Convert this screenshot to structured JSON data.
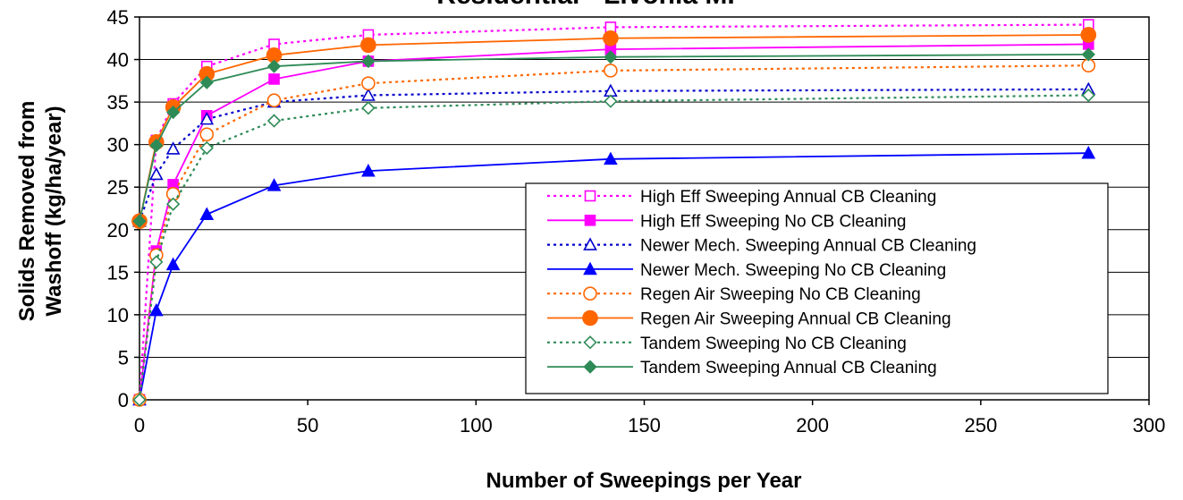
{
  "chart_data": {
    "type": "line",
    "title": "Residential - Livonia MI",
    "xlabel": "Number of Sweepings per Year",
    "ylabel_line1": "Solids Removed from",
    "ylabel_line2": "Washoff (kg/ha/year)",
    "xlim": [
      0,
      300
    ],
    "ylim": [
      0,
      45
    ],
    "x_ticks": [
      0,
      50,
      100,
      150,
      200,
      250,
      300
    ],
    "y_ticks": [
      0,
      5,
      10,
      15,
      20,
      25,
      30,
      35,
      40,
      45
    ],
    "grid": "horizontal",
    "legend_position": "lower-right",
    "x": [
      0,
      5,
      10,
      20,
      40,
      68,
      140,
      282
    ],
    "series": [
      {
        "name": "High Eff Sweeping Annual CB Cleaning",
        "color": "#ff00ff",
        "dashed": true,
        "marker": "square-open",
        "values": [
          0,
          30.5,
          34.8,
          39.2,
          41.8,
          42.9,
          43.8,
          44.1
        ]
      },
      {
        "name": "High Eff Sweeping No CB Cleaning",
        "color": "#ff00ff",
        "dashed": false,
        "marker": "square-filled",
        "values": [
          0,
          17.5,
          25.3,
          33.4,
          37.7,
          39.8,
          41.2,
          41.8
        ]
      },
      {
        "name": "Newer Mech. Sweeping Annual CB Cleaning",
        "color": "#0000cc",
        "dashed": true,
        "marker": "triangle-open",
        "values": [
          21.0,
          26.5,
          29.5,
          33.0,
          35.0,
          35.8,
          36.3,
          36.5
        ]
      },
      {
        "name": "Newer Mech. Sweeping No CB Cleaning",
        "color": "#0000ff",
        "dashed": false,
        "marker": "triangle-filled",
        "values": [
          0,
          10.5,
          15.9,
          21.8,
          25.2,
          26.9,
          28.3,
          29.0
        ]
      },
      {
        "name": "Regen Air Sweeping No CB Cleaning",
        "color": "#ff6600",
        "dashed": true,
        "marker": "circle-open",
        "values": [
          0,
          17.0,
          24.2,
          31.2,
          35.2,
          37.2,
          38.7,
          39.3
        ]
      },
      {
        "name": "Regen Air Sweeping Annual CB Cleaning",
        "color": "#ff6600",
        "dashed": false,
        "marker": "circle-filled",
        "values": [
          21.0,
          30.3,
          34.4,
          38.3,
          40.5,
          41.7,
          42.5,
          42.9
        ]
      },
      {
        "name": "Tandem Sweeping No CB Cleaning",
        "color": "#2e8b57",
        "dashed": true,
        "marker": "diamond-open",
        "values": [
          0,
          16.2,
          23.0,
          29.6,
          32.8,
          34.3,
          35.1,
          35.8
        ]
      },
      {
        "name": "Tandem Sweeping Annual CB Cleaning",
        "color": "#2e8b57",
        "dashed": false,
        "marker": "diamond-filled",
        "values": [
          21.0,
          29.9,
          33.8,
          37.3,
          39.2,
          39.8,
          40.3,
          40.6
        ]
      }
    ]
  }
}
